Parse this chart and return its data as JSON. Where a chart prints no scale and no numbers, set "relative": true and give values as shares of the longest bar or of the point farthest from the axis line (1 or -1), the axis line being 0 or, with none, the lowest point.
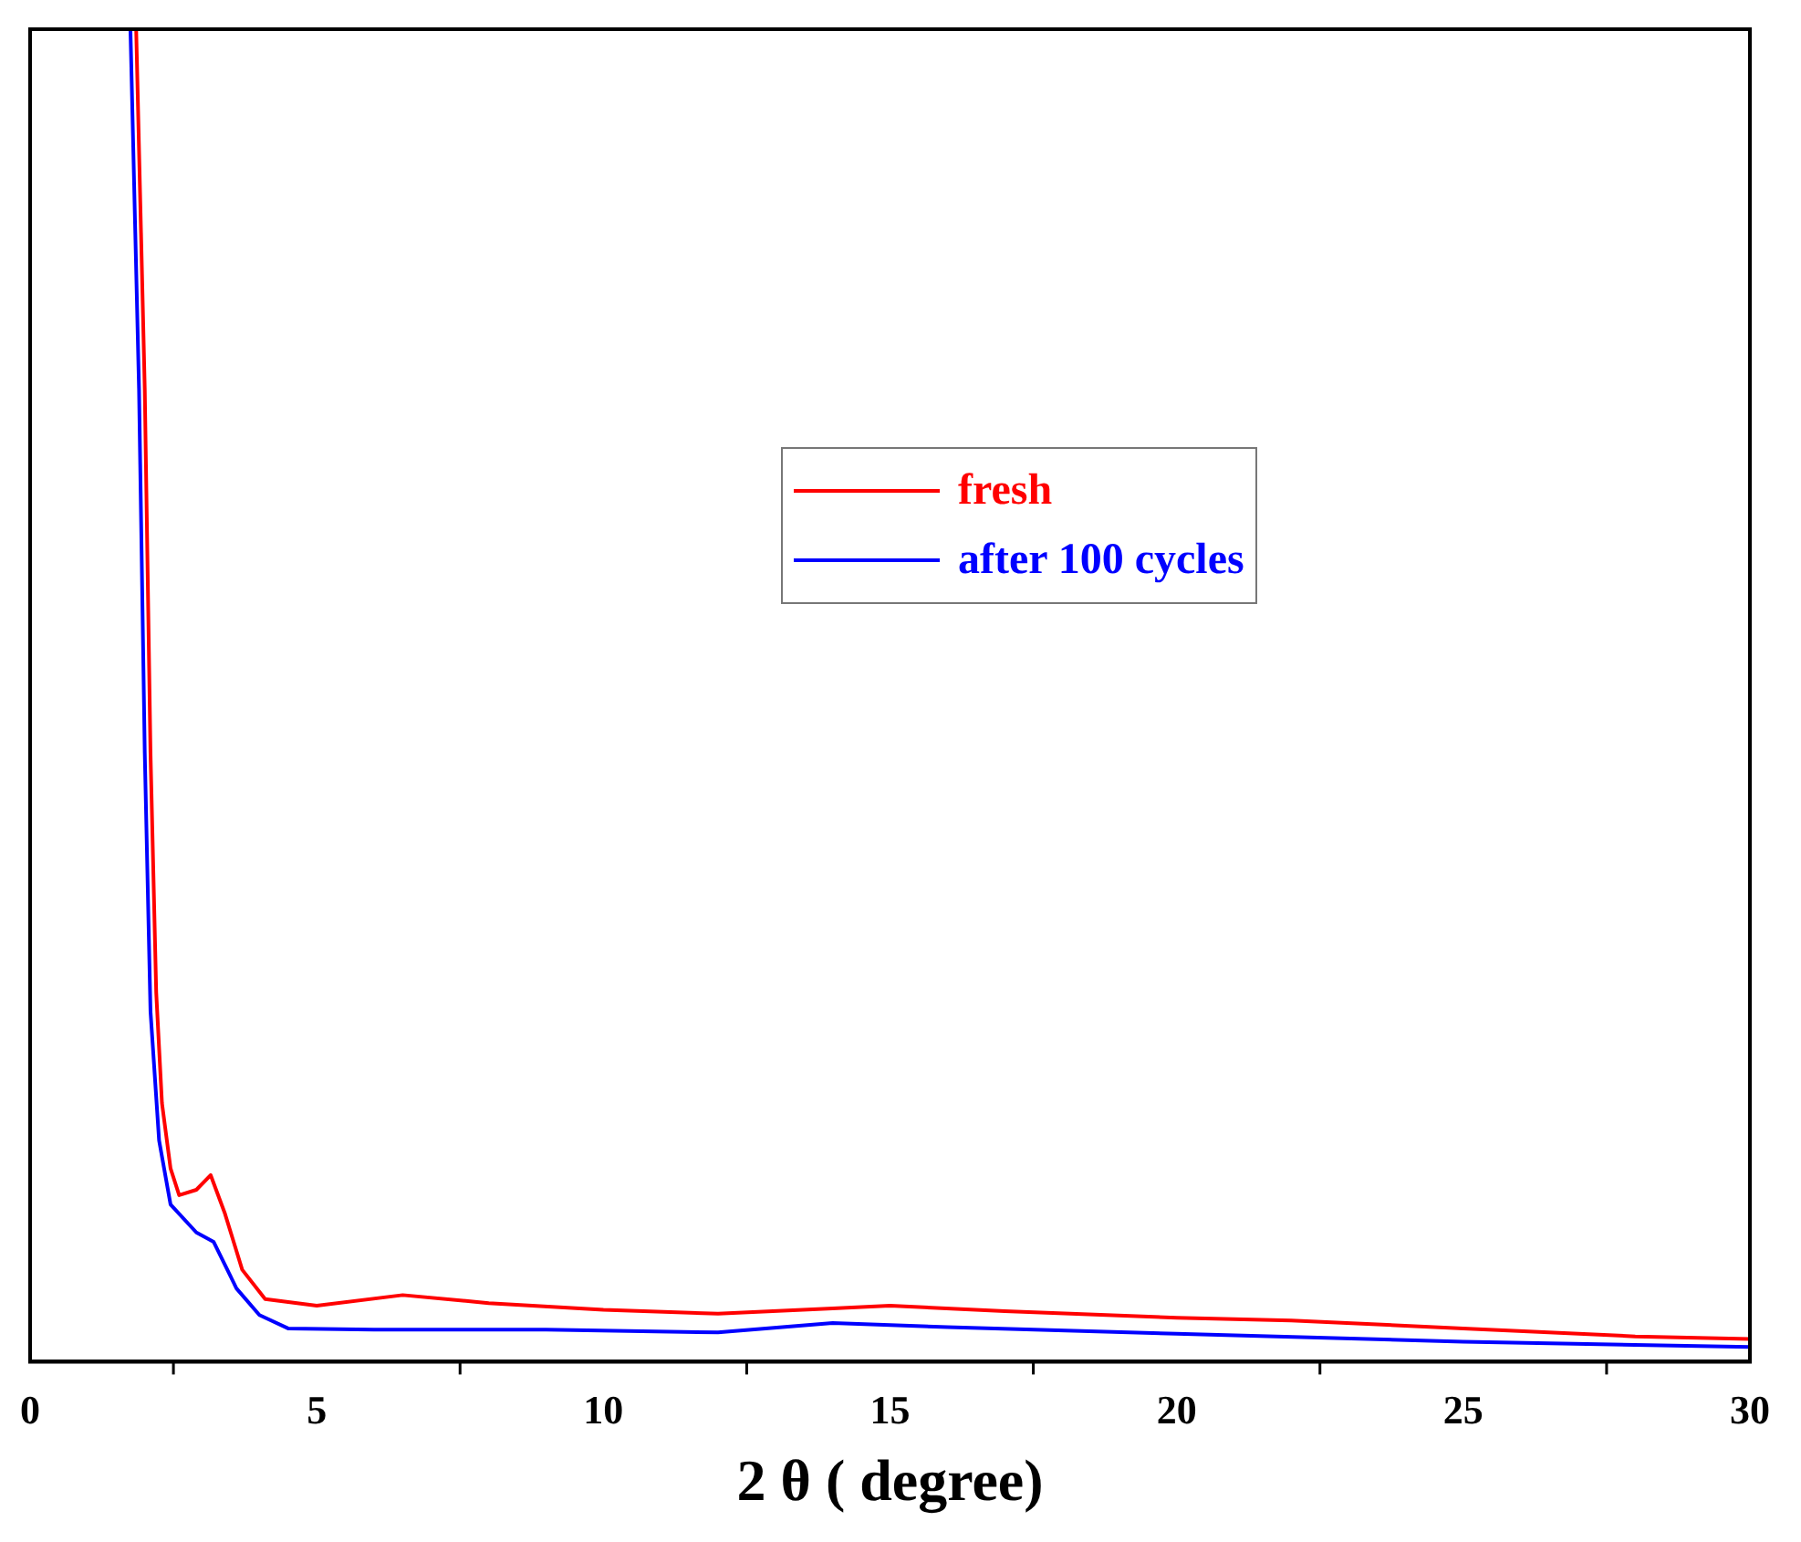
{
  "chart_data": {
    "type": "line",
    "xlabel": "2 θ ( degree)",
    "relative": true,
    "xlim": [
      0,
      30
    ],
    "xticks": [
      0,
      5,
      10,
      15,
      20,
      25,
      30
    ],
    "tick_labels": "x",
    "grid": false,
    "legend": "right",
    "marker": "none",
    "line_style": "solid",
    "series": [
      {
        "name": "fresh",
        "color": "#ff0000",
        "x": [
          1.85,
          2.0,
          2.1,
          2.2,
          2.3,
          2.45,
          2.6,
          2.9,
          3.15,
          3.4,
          3.7,
          4.1,
          5,
          6.5,
          8,
          10,
          12,
          14,
          15,
          17,
          20,
          22,
          25,
          28,
          30
        ],
        "values": [
          1.0,
          0.73,
          0.457,
          0.277,
          0.194,
          0.145,
          0.125,
          0.129,
          0.14,
          0.111,
          0.069,
          0.047,
          0.042,
          0.05,
          0.044,
          0.039,
          0.036,
          0.04,
          0.042,
          0.038,
          0.033,
          0.031,
          0.025,
          0.019,
          0.017
        ]
      },
      {
        "name": "after 100 cycles",
        "color": "#0000ff",
        "x": [
          1.75,
          1.9,
          2.0,
          2.1,
          2.25,
          2.45,
          2.9,
          3.2,
          3.6,
          4.0,
          4.5,
          6,
          9,
          12,
          14,
          16,
          20,
          25,
          30
        ],
        "values": [
          1.0,
          0.73,
          0.457,
          0.263,
          0.166,
          0.118,
          0.097,
          0.09,
          0.055,
          0.035,
          0.025,
          0.024,
          0.024,
          0.022,
          0.029,
          0.026,
          0.021,
          0.015,
          0.011
        ]
      }
    ]
  }
}
